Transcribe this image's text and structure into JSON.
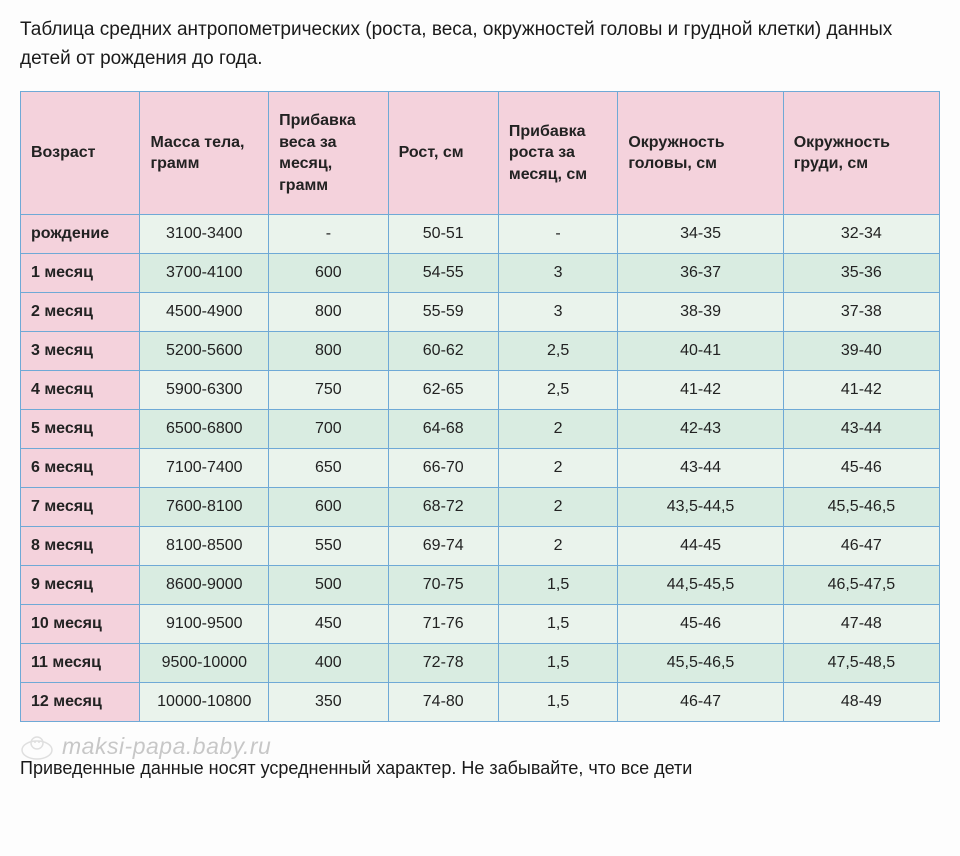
{
  "title": "Таблица средних антропометрических (роста, веса, окружностей головы и грудной клетки) данных детей от рождения до года.",
  "columns": [
    "Возраст",
    "Масса тела, грамм",
    "Прибавка веса за месяц, грамм",
    "Рост, см",
    "Прибавка роста за месяц, см",
    "Окружность головы, см",
    "Окружность груди, см"
  ],
  "rows": [
    {
      "age": "рождение",
      "mass": "3100-3400",
      "gain_w": "-",
      "height": "50-51",
      "gain_h": "-",
      "head": "34-35",
      "chest": "32-34"
    },
    {
      "age": "1 месяц",
      "mass": "3700-4100",
      "gain_w": "600",
      "height": "54-55",
      "gain_h": "3",
      "head": "36-37",
      "chest": "35-36"
    },
    {
      "age": "2 месяц",
      "mass": "4500-4900",
      "gain_w": "800",
      "height": "55-59",
      "gain_h": "3",
      "head": "38-39",
      "chest": "37-38"
    },
    {
      "age": "3 месяц",
      "mass": "5200-5600",
      "gain_w": "800",
      "height": "60-62",
      "gain_h": "2,5",
      "head": "40-41",
      "chest": "39-40"
    },
    {
      "age": "4 месяц",
      "mass": "5900-6300",
      "gain_w": "750",
      "height": "62-65",
      "gain_h": "2,5",
      "head": "41-42",
      "chest": "41-42"
    },
    {
      "age": "5 месяц",
      "mass": "6500-6800",
      "gain_w": "700",
      "height": "64-68",
      "gain_h": "2",
      "head": "42-43",
      "chest": "43-44"
    },
    {
      "age": "6 месяц",
      "mass": "7100-7400",
      "gain_w": "650",
      "height": "66-70",
      "gain_h": "2",
      "head": "43-44",
      "chest": "45-46"
    },
    {
      "age": "7 месяц",
      "mass": "7600-8100",
      "gain_w": "600",
      "height": "68-72",
      "gain_h": "2",
      "head": "43,5-44,5",
      "chest": "45,5-46,5"
    },
    {
      "age": "8 месяц",
      "mass": "8100-8500",
      "gain_w": "550",
      "height": "69-74",
      "gain_h": "2",
      "head": "44-45",
      "chest": "46-47"
    },
    {
      "age": "9 месяц",
      "mass": "8600-9000",
      "gain_w": "500",
      "height": "70-75",
      "gain_h": "1,5",
      "head": "44,5-45,5",
      "chest": "46,5-47,5"
    },
    {
      "age": "10 месяц",
      "mass": "9100-9500",
      "gain_w": "450",
      "height": "71-76",
      "gain_h": "1,5",
      "head": "45-46",
      "chest": "47-48"
    },
    {
      "age": "11 месяц",
      "mass": "9500-10000",
      "gain_w": "400",
      "height": "72-78",
      "gain_h": "1,5",
      "head": "45,5-46,5",
      "chest": "47,5-48,5"
    },
    {
      "age": "12 месяц",
      "mass": "10000-10800",
      "gain_w": "350",
      "height": "74-80",
      "gain_h": "1,5",
      "head": "46-47",
      "chest": "48-49"
    }
  ],
  "watermark_text": "maksi-papa.baby.ru",
  "footer_note": "Приведенные данные носят усредненный характер. Не забывайте, что все дети",
  "style": {
    "header_bg": "#f4d2dc",
    "row_odd_bg": "#eaf3ec",
    "row_even_bg": "#d9ece1",
    "border_color": "#6fa9d6",
    "title_fontsize": 19,
    "cell_fontsize": 16,
    "page_bg": "#fdfdfd",
    "text_color": "#1a1a1a",
    "column_widths_pct": [
      13,
      14,
      13,
      12,
      13,
      18,
      17
    ]
  }
}
